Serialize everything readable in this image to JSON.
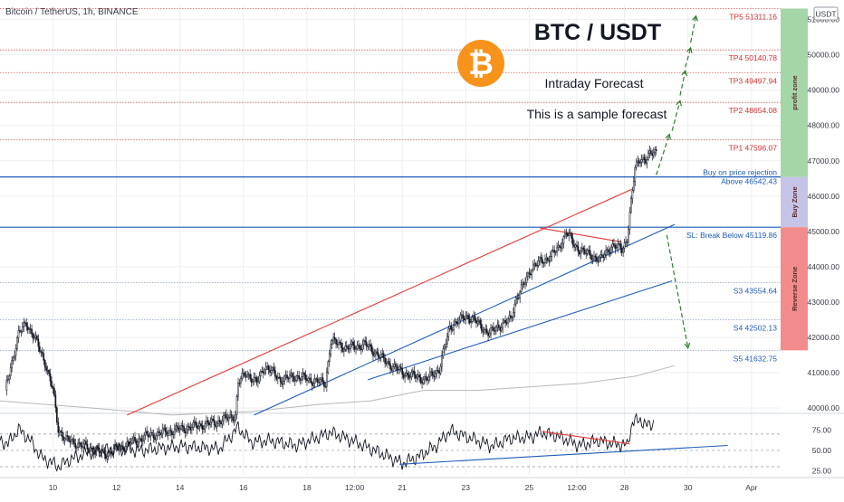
{
  "header": {
    "symbol": "Bitcoin / TetherUS, 1h, BINANCE"
  },
  "currency_badge": "USDT",
  "annotations": {
    "title": "BTC / USDT",
    "subtitle": "Intraday Forecast",
    "note": "This is a sample forecast"
  },
  "zones": [
    {
      "label": "profit zone",
      "from": 46542.43,
      "to": 51311.16,
      "color": "#a5d6a7"
    },
    {
      "label": "Buy Zone",
      "from": 45119.86,
      "to": 46542.43,
      "color": "#c5c3e6"
    },
    {
      "label": "Reverse Zone",
      "from": 41632.75,
      "to": 45119.86,
      "color": "#f28b8b"
    }
  ],
  "levels": [
    {
      "label": "TP5 51311.16",
      "price": 51311.16,
      "color": "#e05252",
      "label_color": "#d32f2f",
      "style": "dotted"
    },
    {
      "label": "TP4 50140.78",
      "price": 50140.78,
      "color": "#e05252",
      "label_color": "#d32f2f",
      "style": "dotted"
    },
    {
      "label": "TP3 49497.94",
      "price": 49497.94,
      "color": "#e05252",
      "label_color": "#d32f2f",
      "style": "dotted"
    },
    {
      "label": "TP2 48654.08",
      "price": 48654.08,
      "color": "#e05252",
      "label_color": "#d32f2f",
      "style": "dotted"
    },
    {
      "label": "TP1 47596.07",
      "price": 47596.07,
      "color": "#e05252",
      "label_color": "#d32f2f",
      "style": "dotted"
    },
    {
      "label": "Buy on price rejection",
      "label2": "Above 46542.43",
      "price": 46542.43,
      "color": "#1e5bb8",
      "label_color": "#1e5bb8",
      "style": "solid"
    },
    {
      "label": "SL: Break Below 45119.86",
      "price": 45119.86,
      "color": "#1e5bb8",
      "label_color": "#1e5bb8",
      "style": "solid"
    },
    {
      "label": "S3 43554.64",
      "price": 43554.64,
      "color": "#90a4c8",
      "label_color": "#1e5bb8",
      "style": "dotted"
    },
    {
      "label": "S4 42502.13",
      "price": 42502.13,
      "color": "#90a4c8",
      "label_color": "#1e5bb8",
      "style": "dotted"
    },
    {
      "label": "S5 41632.75",
      "price": 41632.75,
      "color": "#90a4c8",
      "label_color": "#1e5bb8",
      "style": "dotted"
    }
  ],
  "chart_data": {
    "type": "candlestick",
    "price_axis": {
      "ticks": [
        40000,
        41000,
        42000,
        43000,
        44000,
        45000,
        46000,
        47000,
        48000,
        49000,
        50000,
        51000
      ],
      "tick_labels": [
        "40000.00",
        "41000.00",
        "42000.00",
        "43000.00",
        "44000.00",
        "45000.00",
        "46000.00",
        "47000.00",
        "48000.00",
        "49000.00",
        "50000.00",
        "51000.00"
      ],
      "range": [
        39900,
        51400
      ]
    },
    "time_axis": {
      "labels": [
        "10",
        "12",
        "14",
        "16",
        "18",
        "12:00",
        "21",
        "23",
        "25",
        "12:00",
        "28",
        "30",
        "Apr"
      ],
      "label_positions_hours": [
        0,
        48,
        96,
        144,
        192,
        228,
        264,
        312,
        360,
        396,
        432,
        480,
        528
      ],
      "range_hours": [
        -40,
        550
      ]
    },
    "candles": {
      "interval": "1h",
      "close_anchors": [
        [
          -36,
          40500
        ],
        [
          -26,
          42100
        ],
        [
          -20,
          42400
        ],
        [
          -14,
          42000
        ],
        [
          -6,
          41300
        ],
        [
          0,
          40500
        ],
        [
          4,
          39400
        ],
        [
          10,
          39100
        ],
        [
          40,
          38700
        ],
        [
          70,
          39200
        ],
        [
          96,
          39400
        ],
        [
          124,
          39600
        ],
        [
          138,
          39800
        ],
        [
          140,
          40700
        ],
        [
          146,
          41000
        ],
        [
          154,
          40700
        ],
        [
          160,
          41200
        ],
        [
          172,
          40800
        ],
        [
          184,
          40900
        ],
        [
          194,
          40800
        ],
        [
          206,
          40700
        ],
        [
          210,
          41900
        ],
        [
          222,
          41700
        ],
        [
          236,
          41800
        ],
        [
          246,
          41500
        ],
        [
          252,
          41300
        ],
        [
          264,
          41000
        ],
        [
          282,
          40800
        ],
        [
          292,
          41100
        ],
        [
          300,
          42300
        ],
        [
          312,
          42600
        ],
        [
          318,
          42500
        ],
        [
          330,
          42100
        ],
        [
          336,
          42300
        ],
        [
          346,
          42500
        ],
        [
          350,
          43100
        ],
        [
          356,
          43500
        ],
        [
          362,
          44000
        ],
        [
          372,
          44200
        ],
        [
          382,
          44500
        ],
        [
          388,
          45000
        ],
        [
          394,
          44600
        ],
        [
          402,
          44400
        ],
        [
          414,
          44200
        ],
        [
          422,
          44600
        ],
        [
          430,
          44500
        ],
        [
          434,
          44800
        ],
        [
          436,
          45500
        ],
        [
          438,
          46100
        ],
        [
          440,
          46800
        ],
        [
          444,
          47100
        ],
        [
          448,
          47000
        ],
        [
          452,
          47200
        ],
        [
          456,
          47300
        ]
      ],
      "moving_average": [
        [
          -40,
          40200
        ],
        [
          30,
          40000
        ],
        [
          90,
          39800
        ],
        [
          150,
          39900
        ],
        [
          200,
          40100
        ],
        [
          240,
          40200
        ],
        [
          280,
          40500
        ],
        [
          320,
          40500
        ],
        [
          360,
          40600
        ],
        [
          400,
          40700
        ],
        [
          440,
          40900
        ],
        [
          470,
          41200
        ]
      ]
    },
    "trendlines": [
      {
        "color": "#e53935",
        "points": [
          [
            56,
            39800
          ],
          [
            438,
            46200
          ]
        ]
      },
      {
        "color": "#e53935",
        "points": [
          [
            368,
            45100
          ],
          [
            430,
            44700
          ]
        ]
      },
      {
        "color": "#1e5bb8",
        "points": [
          [
            152,
            39800
          ],
          [
            470,
            45200
          ]
        ]
      },
      {
        "color": "#1e5bb8",
        "points": [
          [
            238,
            40800
          ],
          [
            468,
            43600
          ]
        ]
      }
    ],
    "forecast_arrows": [
      {
        "color": "#2e7d32",
        "from": [
          456,
          46600
        ],
        "to": [
          466,
          47750
        ]
      },
      {
        "color": "#2e7d32",
        "from": [
          468,
          47850
        ],
        "to": [
          474,
          48700
        ]
      },
      {
        "color": "#2e7d32",
        "from": [
          474,
          48850
        ],
        "to": [
          478,
          49550
        ]
      },
      {
        "color": "#2e7d32",
        "from": [
          478,
          49650
        ],
        "to": [
          482,
          50200
        ]
      },
      {
        "color": "#2e7d32",
        "from": [
          482,
          50350
        ],
        "to": [
          486,
          51100
        ]
      },
      {
        "color": "#2e7d32",
        "from": [
          464,
          44900
        ],
        "to": [
          480,
          41700
        ]
      }
    ],
    "rsi": {
      "ticks": [
        25,
        50,
        75
      ],
      "tick_labels": [
        "25.00",
        "50.00",
        "75.00"
      ],
      "range": [
        20,
        92
      ],
      "guides": [
        70,
        50,
        30
      ],
      "anchors": [
        [
          -40,
          62
        ],
        [
          -34,
          58
        ],
        [
          -26,
          76
        ],
        [
          -18,
          64
        ],
        [
          -8,
          40
        ],
        [
          -2,
          36
        ],
        [
          4,
          30
        ],
        [
          12,
          38
        ],
        [
          28,
          48
        ],
        [
          48,
          52
        ],
        [
          66,
          50
        ],
        [
          96,
          55
        ],
        [
          126,
          52
        ],
        [
          140,
          78
        ],
        [
          150,
          60
        ],
        [
          164,
          62
        ],
        [
          184,
          56
        ],
        [
          210,
          72
        ],
        [
          226,
          62
        ],
        [
          250,
          45
        ],
        [
          264,
          34
        ],
        [
          276,
          42
        ],
        [
          290,
          56
        ],
        [
          300,
          74
        ],
        [
          314,
          66
        ],
        [
          332,
          55
        ],
        [
          346,
          65
        ],
        [
          360,
          66
        ],
        [
          370,
          72
        ],
        [
          384,
          66
        ],
        [
          398,
          56
        ],
        [
          412,
          62
        ],
        [
          424,
          58
        ],
        [
          434,
          56
        ],
        [
          438,
          84
        ],
        [
          444,
          88
        ],
        [
          448,
          80
        ],
        [
          454,
          84
        ]
      ],
      "trendlines": [
        {
          "color": "#1e5bb8",
          "points": [
            [
              262,
              33
            ],
            [
              510,
              56
            ]
          ]
        },
        {
          "color": "#e53935",
          "points": [
            [
              370,
              73
            ],
            [
              436,
              58
            ]
          ]
        }
      ]
    }
  },
  "colors": {
    "bg": "#ffffff",
    "grid": "#edeff3",
    "candle": "#131722",
    "moving_average": "#b8b8b8",
    "rsi_line": "#131722",
    "axis_text": "#363a45",
    "logo_orange": "#f7931a"
  },
  "logo": {
    "icon": "bitcoin-icon",
    "glyph": "₿"
  }
}
